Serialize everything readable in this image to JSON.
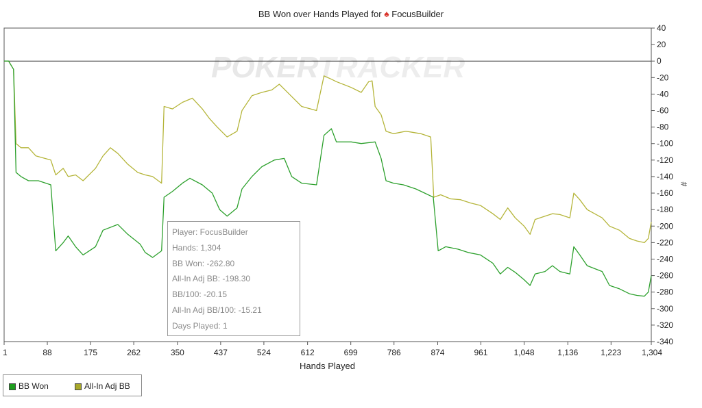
{
  "chart_data": {
    "type": "line",
    "title": "BB Won over Hands Played for",
    "title_player": "FocusBuilder",
    "watermark_left": "POKER",
    "watermark_right": "TRACKER",
    "xlabel": "Hands Played",
    "ylabel": "#",
    "xlim": [
      1,
      1304
    ],
    "ylim": [
      -340,
      40
    ],
    "x_ticks": [
      "1",
      "88",
      "175",
      "262",
      "350",
      "437",
      "524",
      "612",
      "699",
      "786",
      "874",
      "961",
      "1,048",
      "1,136",
      "1,223",
      "1,304"
    ],
    "x_tick_values": [
      1,
      88,
      175,
      262,
      350,
      437,
      524,
      612,
      699,
      786,
      874,
      961,
      1048,
      1136,
      1223,
      1304
    ],
    "y_ticks": [
      40,
      20,
      0,
      -20,
      -40,
      -60,
      -80,
      -100,
      -120,
      -140,
      -160,
      -180,
      -200,
      -220,
      -240,
      -260,
      -280,
      -300,
      -320,
      -340
    ],
    "grid": false,
    "legend_position": "bottom-left",
    "series": [
      {
        "name": "BB Won",
        "color": "#2ca02c",
        "points": [
          [
            1,
            0
          ],
          [
            10,
            0
          ],
          [
            20,
            -10
          ],
          [
            25,
            -135
          ],
          [
            35,
            -140
          ],
          [
            50,
            -145
          ],
          [
            70,
            -145
          ],
          [
            95,
            -150
          ],
          [
            105,
            -230
          ],
          [
            120,
            -220
          ],
          [
            130,
            -212
          ],
          [
            145,
            -225
          ],
          [
            160,
            -235
          ],
          [
            185,
            -225
          ],
          [
            200,
            -205
          ],
          [
            230,
            -198
          ],
          [
            250,
            -210
          ],
          [
            275,
            -222
          ],
          [
            285,
            -232
          ],
          [
            300,
            -238
          ],
          [
            318,
            -230
          ],
          [
            323,
            -165
          ],
          [
            340,
            -158
          ],
          [
            360,
            -148
          ],
          [
            375,
            -142
          ],
          [
            400,
            -150
          ],
          [
            420,
            -160
          ],
          [
            435,
            -180
          ],
          [
            450,
            -188
          ],
          [
            470,
            -178
          ],
          [
            480,
            -155
          ],
          [
            500,
            -140
          ],
          [
            520,
            -128
          ],
          [
            545,
            -120
          ],
          [
            565,
            -118
          ],
          [
            580,
            -140
          ],
          [
            600,
            -148
          ],
          [
            630,
            -150
          ],
          [
            645,
            -90
          ],
          [
            660,
            -82
          ],
          [
            670,
            -98
          ],
          [
            700,
            -98
          ],
          [
            720,
            -100
          ],
          [
            748,
            -98
          ],
          [
            760,
            -118
          ],
          [
            770,
            -145
          ],
          [
            785,
            -148
          ],
          [
            805,
            -150
          ],
          [
            830,
            -155
          ],
          [
            848,
            -160
          ],
          [
            865,
            -165
          ],
          [
            875,
            -230
          ],
          [
            890,
            -225
          ],
          [
            915,
            -228
          ],
          [
            935,
            -232
          ],
          [
            960,
            -235
          ],
          [
            985,
            -245
          ],
          [
            1000,
            -258
          ],
          [
            1015,
            -250
          ],
          [
            1030,
            -256
          ],
          [
            1048,
            -265
          ],
          [
            1060,
            -272
          ],
          [
            1070,
            -258
          ],
          [
            1090,
            -255
          ],
          [
            1105,
            -248
          ],
          [
            1120,
            -255
          ],
          [
            1140,
            -258
          ],
          [
            1148,
            -225
          ],
          [
            1160,
            -235
          ],
          [
            1175,
            -248
          ],
          [
            1205,
            -255
          ],
          [
            1220,
            -272
          ],
          [
            1240,
            -276
          ],
          [
            1260,
            -282
          ],
          [
            1275,
            -284
          ],
          [
            1290,
            -285
          ],
          [
            1298,
            -280
          ],
          [
            1304,
            -260
          ]
        ]
      },
      {
        "name": "All-In Adj BB",
        "color": "#b5b53a",
        "points": [
          [
            1,
            0
          ],
          [
            10,
            0
          ],
          [
            20,
            -10
          ],
          [
            25,
            -100
          ],
          [
            35,
            -105
          ],
          [
            50,
            -105
          ],
          [
            65,
            -115
          ],
          [
            95,
            -120
          ],
          [
            105,
            -138
          ],
          [
            120,
            -130
          ],
          [
            130,
            -140
          ],
          [
            145,
            -138
          ],
          [
            160,
            -145
          ],
          [
            185,
            -130
          ],
          [
            200,
            -115
          ],
          [
            215,
            -105
          ],
          [
            230,
            -112
          ],
          [
            250,
            -125
          ],
          [
            270,
            -135
          ],
          [
            285,
            -138
          ],
          [
            300,
            -140
          ],
          [
            318,
            -148
          ],
          [
            323,
            -55
          ],
          [
            340,
            -58
          ],
          [
            360,
            -50
          ],
          [
            380,
            -45
          ],
          [
            400,
            -58
          ],
          [
            415,
            -70
          ],
          [
            430,
            -80
          ],
          [
            450,
            -92
          ],
          [
            470,
            -85
          ],
          [
            480,
            -60
          ],
          [
            500,
            -42
          ],
          [
            520,
            -38
          ],
          [
            540,
            -35
          ],
          [
            555,
            -28
          ],
          [
            575,
            -40
          ],
          [
            600,
            -55
          ],
          [
            630,
            -60
          ],
          [
            645,
            -18
          ],
          [
            660,
            -22
          ],
          [
            670,
            -25
          ],
          [
            700,
            -32
          ],
          [
            720,
            -38
          ],
          [
            735,
            -25
          ],
          [
            742,
            -24
          ],
          [
            748,
            -55
          ],
          [
            760,
            -65
          ],
          [
            770,
            -85
          ],
          [
            785,
            -88
          ],
          [
            810,
            -85
          ],
          [
            840,
            -88
          ],
          [
            860,
            -92
          ],
          [
            866,
            -165
          ],
          [
            880,
            -162
          ],
          [
            900,
            -167
          ],
          [
            920,
            -168
          ],
          [
            940,
            -172
          ],
          [
            960,
            -175
          ],
          [
            985,
            -185
          ],
          [
            1000,
            -192
          ],
          [
            1015,
            -178
          ],
          [
            1030,
            -190
          ],
          [
            1048,
            -200
          ],
          [
            1060,
            -210
          ],
          [
            1070,
            -192
          ],
          [
            1090,
            -188
          ],
          [
            1105,
            -185
          ],
          [
            1120,
            -186
          ],
          [
            1140,
            -190
          ],
          [
            1148,
            -160
          ],
          [
            1160,
            -168
          ],
          [
            1175,
            -180
          ],
          [
            1190,
            -185
          ],
          [
            1205,
            -190
          ],
          [
            1220,
            -200
          ],
          [
            1240,
            -205
          ],
          [
            1260,
            -215
          ],
          [
            1275,
            -218
          ],
          [
            1290,
            -220
          ],
          [
            1298,
            -215
          ],
          [
            1304,
            -195
          ]
        ]
      }
    ]
  },
  "tooltip": {
    "player": "Player: FocusBuilder",
    "hands": "Hands: 1,304",
    "bb_won": "BB Won: -262.80",
    "allin_adj_bb": "All-In Adj BB: -198.30",
    "bb_100": "BB/100: -20.15",
    "allin_adj_bb_100": "All-In Adj BB/100: -15.21",
    "days_played": "Days Played: 1"
  },
  "legend": {
    "bb_won": "BB Won",
    "allin_adj_bb": "All-In Adj BB",
    "bb_won_color": "#1e9e1e",
    "allin_adj_bb_color": "#a8a82a"
  }
}
